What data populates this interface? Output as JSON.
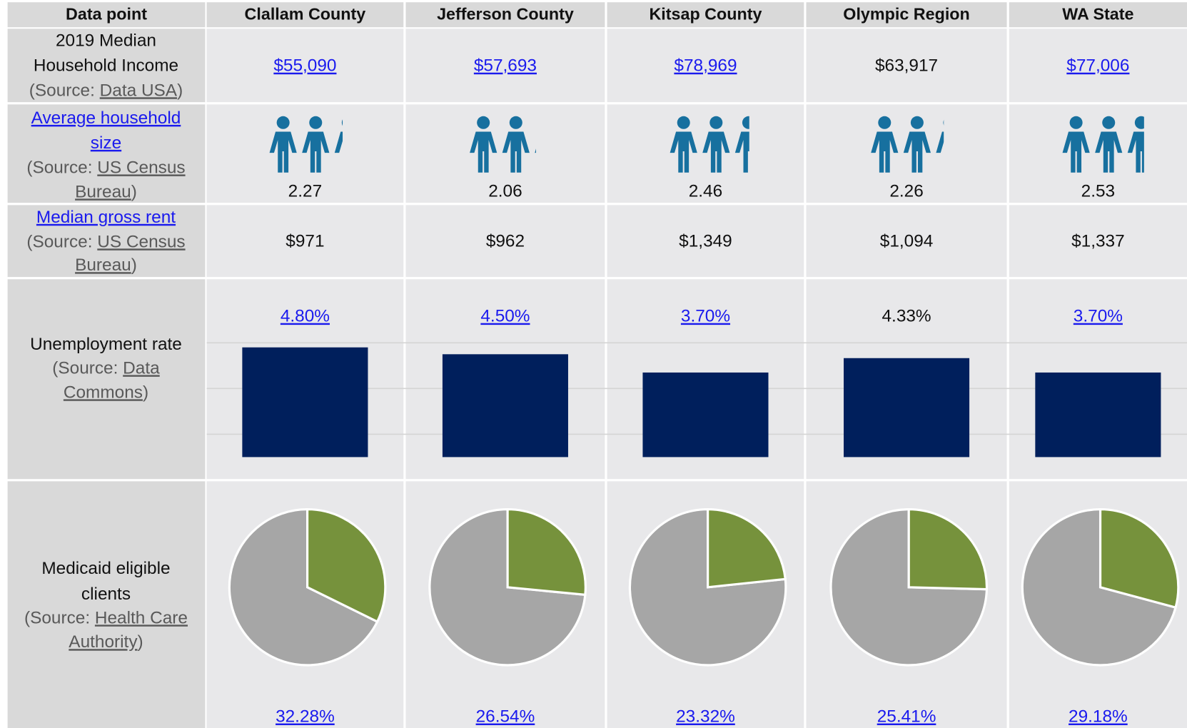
{
  "header": [
    "Data point",
    "Clallam County",
    "Jefferson County",
    "Kitsap County",
    "Olympic Region",
    "WA State"
  ],
  "income": {
    "label": [
      "2019 Median",
      "Household Income"
    ],
    "source": {
      "before": "(Source: ",
      "link": [
        "Data USA"
      ],
      "after": ")"
    },
    "values": [
      "$55,090",
      "$57,693",
      "$78,969",
      "$63,917",
      "$77,006"
    ],
    "linked": [
      true,
      true,
      true,
      false,
      true
    ]
  },
  "household": {
    "label": [
      "Average household",
      "size"
    ],
    "label_linked": true,
    "source": {
      "before": "(Source: ",
      "link": [
        "US Census",
        "Bureau"
      ],
      "after": ")"
    },
    "values": [
      2.27,
      2.06,
      2.46,
      2.26,
      2.53
    ],
    "color": "#17709f"
  },
  "rent": {
    "label": [
      "Median gross rent"
    ],
    "label_linked": true,
    "source": {
      "before": "(Source: ",
      "link": [
        "US Census",
        "Bureau"
      ],
      "after": ")"
    },
    "values": [
      "$971",
      "$962",
      "$1,349",
      "$1,094",
      "$1,337"
    ]
  },
  "unemployment": {
    "type": "bar",
    "label": [
      "Unemployment rate"
    ],
    "source": {
      "before": "(Source: ",
      "link": [
        " Data",
        "Commons"
      ],
      "after": ")"
    },
    "values": [
      4.8,
      4.5,
      3.7,
      4.33,
      3.7
    ],
    "value_labels": [
      "4.80%",
      "4.50%",
      "3.70%",
      "4.33%",
      "3.70%"
    ],
    "linked": [
      true,
      true,
      true,
      false,
      true
    ],
    "color": "#001f5c",
    "ylim": [
      0,
      5
    ],
    "yticks": [
      1,
      3,
      5
    ],
    "grid": true
  },
  "medicaid": {
    "type": "pie",
    "label": [
      "Medicaid eligible",
      "clients"
    ],
    "source": {
      "before": "(Source: ",
      "link": [
        "Health Care",
        "Authority"
      ],
      "after": ")"
    },
    "values": [
      32.28,
      26.54,
      23.32,
      25.41,
      29.18
    ],
    "value_labels": [
      "32.28%",
      "26.54%",
      "23.32%",
      "25.41%",
      "29.18%"
    ],
    "linked": [
      true,
      true,
      true,
      true,
      true
    ],
    "colors": [
      "#76923c",
      "#a6a6a6"
    ]
  }
}
